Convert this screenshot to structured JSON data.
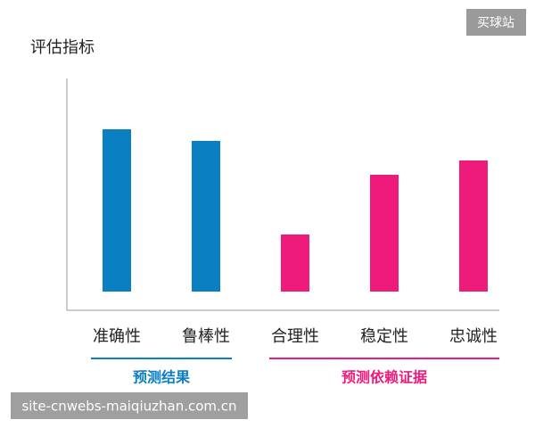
{
  "chart_data": {
    "type": "bar",
    "y_label": "评估指标",
    "categories": [
      "准确性",
      "鲁棒性",
      "合理性",
      "稳定性",
      "忠诚性"
    ],
    "values": [
      182,
      169,
      64,
      131,
      147
    ],
    "ylim": [
      0,
      200
    ],
    "groups": [
      {
        "name": "预测结果",
        "color": "#0a7fc1",
        "members": [
          0,
          1
        ]
      },
      {
        "name": "预测依赖证据",
        "color": "#ee1b7a",
        "members": [
          2,
          3,
          4
        ]
      }
    ]
  },
  "watermarks": {
    "top": "买球站",
    "bottom": "site-cnwebs-maiqiuzhan.com.cn"
  }
}
